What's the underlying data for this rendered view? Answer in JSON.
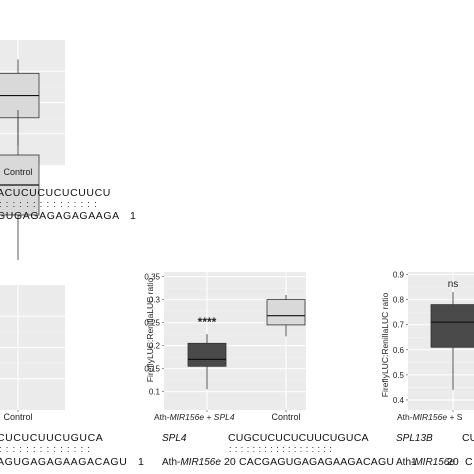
{
  "chart_data": [
    {
      "type": "box",
      "panel": "top-left",
      "categories": [
        "",
        "Control"
      ],
      "boxes": [
        null,
        {
          "q1": 0.52,
          "median": 0.6,
          "q3": 0.68,
          "whisker_low": 0.42,
          "whisker_high": 0.73
        }
      ],
      "ylim": [
        0.35,
        0.8
      ],
      "grid": true
    },
    {
      "type": "box",
      "panel": "bottom-left",
      "categories": [
        "",
        "Control"
      ],
      "boxes": [
        null,
        {
          "q1": 0.49,
          "median": 0.55,
          "q3": 0.61,
          "whisker_low": 0.4,
          "whisker_high": 0.7
        }
      ],
      "ylim": [
        0.1,
        0.35
      ],
      "grid": true
    },
    {
      "type": "box",
      "panel": "bottom-middle",
      "ylabel": "FireflyLUC:RenillaLUC ratio",
      "categories": [
        "Ath-MIR156e + SPL4",
        "Control"
      ],
      "boxes": [
        {
          "q1": 0.155,
          "median": 0.17,
          "q3": 0.205,
          "whisker_low": 0.105,
          "whisker_high": 0.225,
          "fill": "#4a4a4a"
        },
        {
          "q1": 0.245,
          "median": 0.265,
          "q3": 0.3,
          "whisker_low": 0.22,
          "whisker_high": 0.31,
          "fill": "#d9d9d9"
        }
      ],
      "annotations": [
        "****",
        ""
      ],
      "ylim": [
        0.06,
        0.36
      ],
      "yticks": [
        0.1,
        0.15,
        0.2,
        0.25,
        0.3,
        0.35
      ],
      "ytick_labels": [
        "0.1",
        "0.15",
        "0.2",
        "0.25",
        "0.3",
        "0.35"
      ],
      "grid": true
    },
    {
      "type": "box",
      "panel": "bottom-right",
      "ylabel": "FireflyLUC:RenillaLUC ratio",
      "categories": [
        "Ath-MIR156e + S"
      ],
      "boxes": [
        {
          "q1": 0.61,
          "median": 0.71,
          "q3": 0.78,
          "whisker_low": 0.44,
          "whisker_high": 0.83,
          "fill": "#4a4a4a"
        }
      ],
      "annotations": [
        "ns"
      ],
      "ylim": [
        0.36,
        0.91
      ],
      "yticks": [
        0.4,
        0.5,
        0.6,
        0.7,
        0.8,
        0.9
      ],
      "ytick_labels": [
        "0.4",
        "0.5",
        "0.6",
        "0.7",
        "0.8",
        "0.9"
      ],
      "grid": true
    }
  ],
  "alignments": {
    "top": {
      "target_seq": "ACUCUCUCUCUUCU",
      "pairing": ": : : : : : : : : : : : : : :",
      "mirna_seq": "GUGAGAGAGAGAAGA",
      "mirna_end": "1"
    },
    "bottom_left": {
      "target_seq": "CUCUCUUCUGUCA",
      "pairing": ": : : : : : : : : : : : : :",
      "mirna_seq": "AGUGAGAGAAGACAGU",
      "mirna_end": "1"
    },
    "bottom_middle": {
      "gene": "SPL4",
      "target_seq": "CUGCUCUCUCUUCUGUCA",
      "pairing": ": : : : : : : : : : : : : : : : : :",
      "mirna_name_prefix": "Ath-",
      "mirna_name_italic": "MIR156e",
      "mirna_start": "20",
      "mirna_seq": "CACGAGUGAGAGAAGACAGU",
      "mirna_end": "1"
    },
    "bottom_right": {
      "gene": "SPL13B",
      "target_seq": "CU",
      "mirna_name_prefix": "Ath-",
      "mirna_name_italic": "MIR156e",
      "mirna_start": "20",
      "mirna_seq": "C"
    }
  }
}
